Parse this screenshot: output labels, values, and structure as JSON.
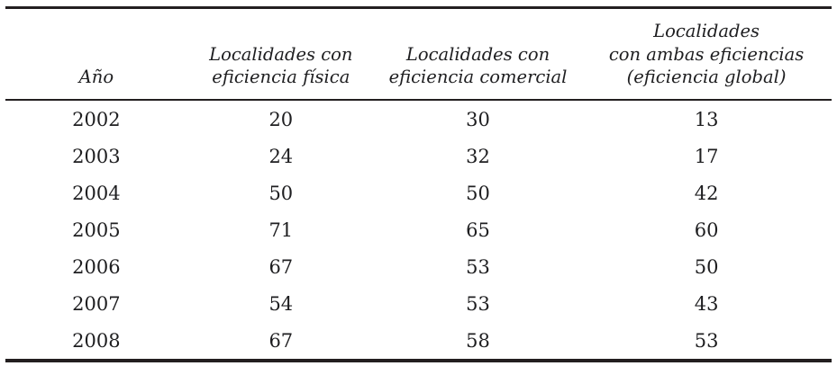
{
  "table": {
    "columns": [
      {
        "id": "ano",
        "lines": [
          "Año"
        ]
      },
      {
        "id": "fisica",
        "lines": [
          "Localidades con",
          "eficiencia física"
        ]
      },
      {
        "id": "comercial",
        "lines": [
          "Localidades con",
          "eficiencia comercial"
        ]
      },
      {
        "id": "global",
        "lines": [
          "Localidades",
          "con ambas eficiencias",
          "(eficiencia global)"
        ]
      }
    ],
    "rows": [
      [
        "2002",
        "20",
        "30",
        "13"
      ],
      [
        "2003",
        "24",
        "32",
        "17"
      ],
      [
        "2004",
        "50",
        "50",
        "42"
      ],
      [
        "2005",
        "71",
        "65",
        "60"
      ],
      [
        "2006",
        "67",
        "53",
        "50"
      ],
      [
        "2007",
        "54",
        "53",
        "43"
      ],
      [
        "2008",
        "67",
        "58",
        "53"
      ]
    ]
  },
  "chart_data": {
    "type": "table",
    "categories": [
      "2002",
      "2003",
      "2004",
      "2005",
      "2006",
      "2007",
      "2008"
    ],
    "series": [
      {
        "name": "Localidades con eficiencia física",
        "values": [
          20,
          24,
          50,
          71,
          67,
          54,
          67
        ]
      },
      {
        "name": "Localidades con eficiencia comercial",
        "values": [
          30,
          32,
          50,
          65,
          53,
          53,
          58
        ]
      },
      {
        "name": "Localidades con ambas eficiencias (eficiencia global)",
        "values": [
          13,
          17,
          42,
          60,
          50,
          43,
          53
        ]
      }
    ],
    "xlabel": "Año",
    "title": ""
  },
  "colors": {
    "rule": "#231f20",
    "text": "#1e1e20",
    "background": "#ffffff"
  }
}
